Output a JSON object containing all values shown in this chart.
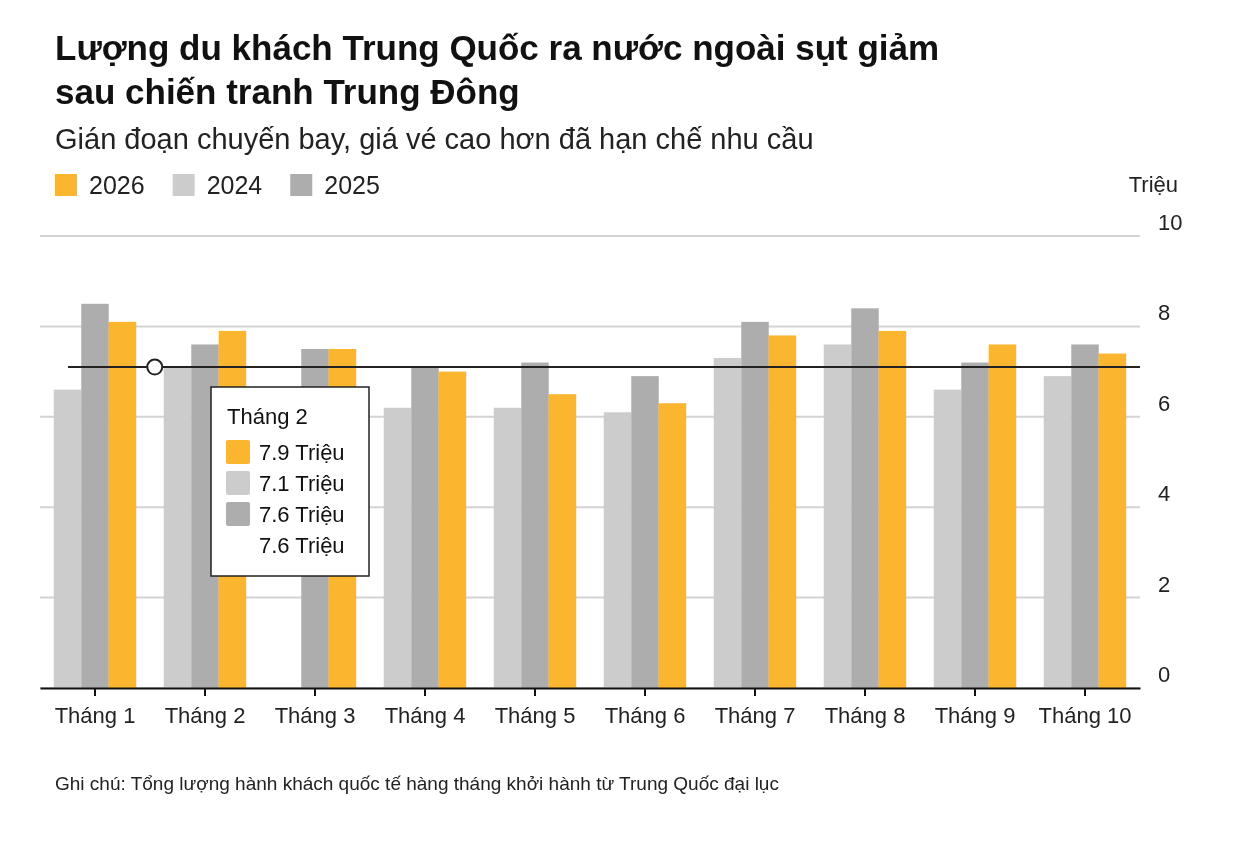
{
  "chart_data": {
    "type": "bar",
    "title": "Lượng du khách Trung Quốc ra nước ngoài sụt giảm sau chiến tranh Trung Đông",
    "subtitle": "Gián đoạn chuyến bay, giá vé cao hơn đã hạn chế nhu cầu",
    "ylabel": "Triệu",
    "categories": [
      "Tháng 1",
      "Tháng 2",
      "Tháng 3",
      "Tháng 4",
      "Tháng 5",
      "Tháng 6",
      "Tháng 7",
      "Tháng 8",
      "Tháng 9",
      "Tháng 10"
    ],
    "series": [
      {
        "name": "2026",
        "color": "#fbb52f",
        "values": [
          8.1,
          7.9,
          7.5,
          7.0,
          6.5,
          6.3,
          7.8,
          7.9,
          7.6,
          7.4
        ]
      },
      {
        "name": "2024",
        "color": "#cccccc",
        "values": [
          6.6,
          7.1,
          null,
          6.2,
          6.2,
          6.1,
          7.3,
          7.6,
          6.6,
          6.9
        ]
      },
      {
        "name": "2025",
        "color": "#adadad",
        "values": [
          8.5,
          7.6,
          7.5,
          7.1,
          7.2,
          6.9,
          8.1,
          8.4,
          7.2,
          7.6
        ]
      }
    ],
    "ylim": [
      0,
      10
    ],
    "yticks": [
      0,
      2,
      4,
      6,
      8,
      10
    ],
    "grid": "y",
    "legend": "top left",
    "ref_lines": [
      {
        "axis": "y",
        "value": 7.1,
        "color": "#222222"
      }
    ],
    "annotations": [
      "Tháng 2",
      "7.9 Triệu",
      "7.1 Triệu",
      "7.6 Triệu",
      "7.6 Triệu",
      "Ghi chú: Tổng lượng hành khách quốc tế hàng tháng khởi hành từ Trung Quốc đại lục"
    ]
  }
}
